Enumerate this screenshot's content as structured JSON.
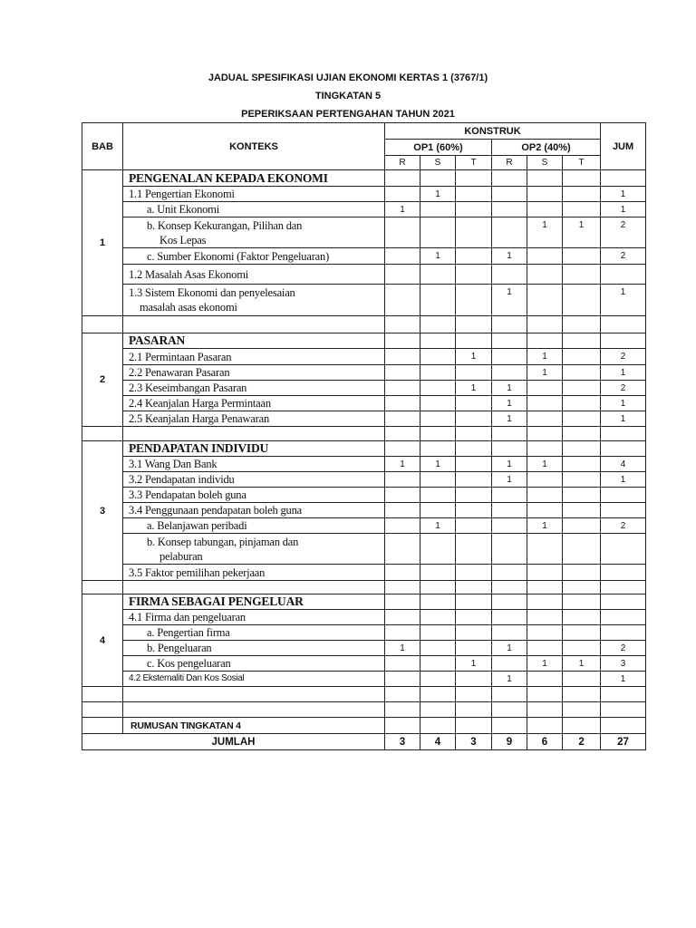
{
  "titles": [
    "JADUAL SPESIFIKASI UJIAN EKONOMI KERTAS 1 (3767/1)",
    "TINGKATAN 5",
    "PEPERIKSAAN PERTENGAHAN TAHUN 2021"
  ],
  "header": {
    "bab": "BAB",
    "konteks": "KONTEKS",
    "konstruk": "KONSTRUK",
    "op1": "OP1 (60%)",
    "op2": "OP2 (40%)",
    "jum": "JUM",
    "levels": [
      "R",
      "S",
      "T",
      "R",
      "S",
      "T"
    ]
  },
  "rows": [
    {
      "bab": "1",
      "span": 7,
      "text": "PENGENALAN KEPADA EKONOMI",
      "style": "heading",
      "values": [
        "",
        "",
        "",
        "",
        "",
        "",
        ""
      ]
    },
    {
      "text": "1.1 Pengertian Ekonomi",
      "style": "",
      "values": [
        "",
        "1",
        "",
        "",
        "",
        "",
        "1"
      ]
    },
    {
      "text": "a. Unit Ekonomi",
      "style": "ind",
      "values": [
        "1",
        "",
        "",
        "",
        "",
        "",
        "1"
      ]
    },
    {
      "text": "b. Konsep Kekurangan, Pilihan dan",
      "text2": "Kos Lepas",
      "style": "ind",
      "values": [
        "",
        "",
        "",
        "",
        "1",
        "1",
        "2"
      ]
    },
    {
      "text": "c. Sumber Ekonomi (Faktor Pengeluaran)",
      "style": "ind",
      "values": [
        "",
        "1",
        "",
        "1",
        "",
        "",
        "2"
      ]
    },
    {
      "text": "1.2 Masalah Asas Ekonomi",
      "style": "",
      "values": [
        "",
        "",
        "",
        "",
        "",
        "",
        ""
      ]
    },
    {
      "text": "1.3 Sistem Ekonomi dan penyelesaian",
      "text2": "masalah asas ekonomi",
      "style": "ind2",
      "values": [
        "",
        "",
        "",
        "1",
        "",
        "",
        "1"
      ]
    },
    {
      "bab": "",
      "span": 1,
      "text": "",
      "style": "",
      "values": [
        "",
        "",
        "",
        "",
        "",
        "",
        ""
      ]
    },
    {
      "bab": "2",
      "span": 6,
      "text": "PASARAN",
      "style": "heading",
      "values": [
        "",
        "",
        "",
        "",
        "",
        "",
        ""
      ]
    },
    {
      "text": "2.1 Permintaan Pasaran",
      "style": "",
      "values": [
        "",
        "",
        "1",
        "",
        "1",
        "",
        "2"
      ]
    },
    {
      "text": "2.2 Penawaran Pasaran",
      "style": "",
      "values": [
        "",
        "",
        "",
        "",
        "1",
        "",
        "1"
      ]
    },
    {
      "text": "2.3 Keseimbangan Pasaran",
      "style": "",
      "values": [
        "",
        "",
        "1",
        "1",
        "",
        "",
        "2"
      ]
    },
    {
      "text": "2.4 Keanjalan Harga Permintaan",
      "style": "",
      "values": [
        "",
        "",
        "",
        "1",
        "",
        "",
        "1"
      ]
    },
    {
      "text": "2.5 Keanjalan Harga Penawaran",
      "style": "",
      "values": [
        "",
        "",
        "",
        "1",
        "",
        "",
        "1"
      ]
    },
    {
      "bab": "",
      "span": 1,
      "text": "",
      "style": "",
      "values": [
        "",
        "",
        "",
        "",
        "",
        "",
        ""
      ]
    },
    {
      "bab": "3",
      "span": 8,
      "text": "PENDAPATAN INDIVIDU",
      "style": "heading",
      "values": [
        "",
        "",
        "",
        "",
        "",
        "",
        ""
      ]
    },
    {
      "text": "3.1 Wang Dan Bank",
      "style": "",
      "values": [
        "1",
        "1",
        "",
        "1",
        "1",
        "",
        "4"
      ]
    },
    {
      "text": "3.2 Pendapatan individu",
      "style": "",
      "values": [
        "",
        "",
        "",
        "1",
        "",
        "",
        "1"
      ]
    },
    {
      "text": "3.3 Pendapatan boleh guna",
      "style": "",
      "values": [
        "",
        "",
        "",
        "",
        "",
        "",
        ""
      ]
    },
    {
      "text": "3.4 Penggunaan pendapatan boleh guna",
      "style": "",
      "values": [
        "",
        "",
        "",
        "",
        "",
        "",
        ""
      ]
    },
    {
      "text": "a. Belanjawan peribadi",
      "style": "ind",
      "values": [
        "",
        "1",
        "",
        "",
        "1",
        "",
        "2"
      ]
    },
    {
      "text": "b. Konsep tabungan, pinjaman dan",
      "text2": "pelaburan",
      "style": "ind",
      "values": [
        "",
        "",
        "",
        "",
        "",
        "",
        ""
      ]
    },
    {
      "text": "3.5 Faktor pemilihan pekerjaan",
      "style": "",
      "values": [
        "",
        "",
        "",
        "",
        "",
        "",
        ""
      ]
    },
    {
      "bab": "",
      "span": 1,
      "text": "",
      "style": "",
      "values": [
        "",
        "",
        "",
        "",
        "",
        "",
        ""
      ]
    },
    {
      "bab": "4",
      "span": 6,
      "text": "FIRMA SEBAGAI PENGELUAR",
      "style": "heading",
      "values": [
        "",
        "",
        "",
        "",
        "",
        "",
        ""
      ]
    },
    {
      "text": "4.1 Firma dan pengeluaran",
      "style": "",
      "values": [
        "",
        "",
        "",
        "",
        "",
        "",
        ""
      ]
    },
    {
      "text": "a. Pengertian firma",
      "style": "ind",
      "values": [
        "",
        "",
        "",
        "",
        "",
        "",
        ""
      ]
    },
    {
      "text": "b. Pengeluaran",
      "style": "ind",
      "values": [
        "1",
        "",
        "",
        "1",
        "",
        "",
        "2"
      ]
    },
    {
      "text": "c. Kos pengeluaran",
      "style": "ind",
      "values": [
        "",
        "",
        "1",
        "",
        "1",
        "1",
        "3"
      ]
    },
    {
      "text": "4.2 Eksternaliti Dan Kos Sosial",
      "style": "sans",
      "values": [
        "",
        "",
        "",
        "1",
        "",
        "",
        "1"
      ]
    },
    {
      "bab": "",
      "span": 1,
      "text": "",
      "style": "",
      "values": [
        "",
        "",
        "",
        "",
        "",
        "",
        ""
      ]
    },
    {
      "bab": "",
      "span": 1,
      "text": "",
      "style": "",
      "values": [
        "",
        "",
        "",
        "",
        "",
        "",
        ""
      ]
    },
    {
      "bab": "",
      "span": 1,
      "text": "RUMUSAN TINGKATAN  4",
      "style": "sansb",
      "values": [
        "",
        "",
        "",
        "",
        "",
        "",
        ""
      ]
    }
  ],
  "total": {
    "label": "JUMLAH",
    "values": [
      "3",
      "4",
      "3",
      "9",
      "6",
      "2",
      "27"
    ]
  }
}
